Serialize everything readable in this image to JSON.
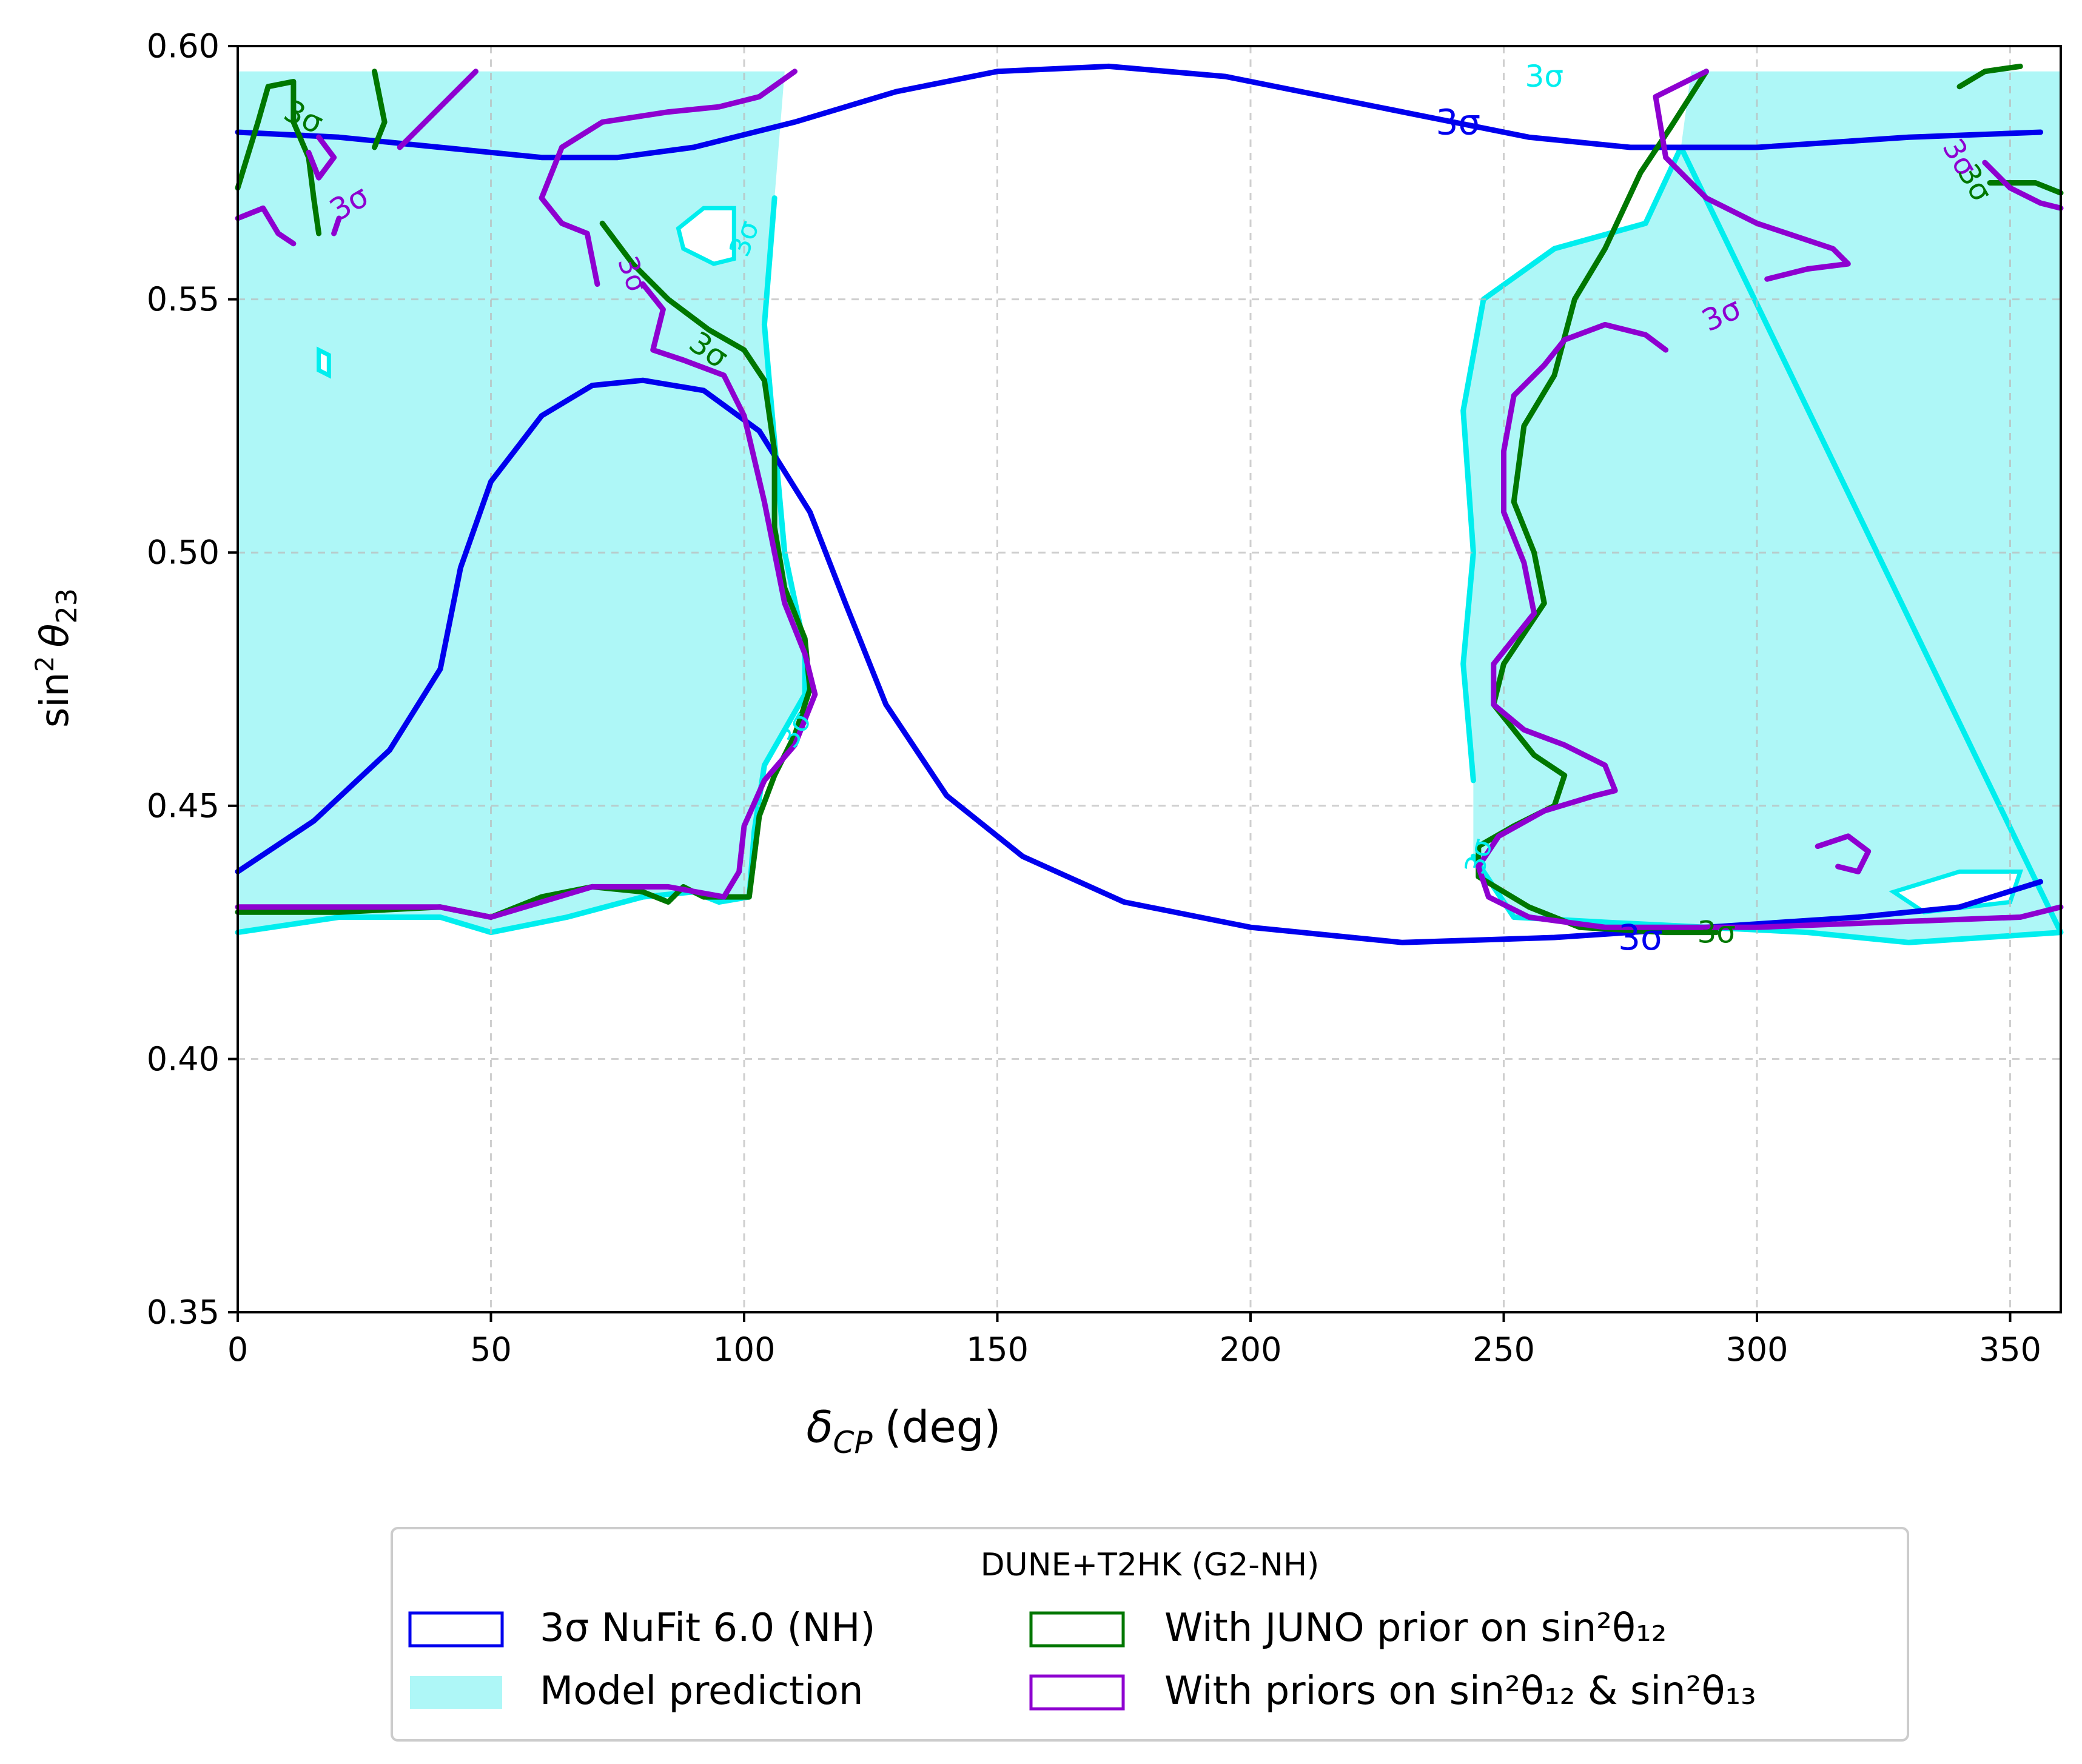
{
  "chart_data": {
    "type": "line",
    "title": "",
    "xlabel": "(deg)",
    "xlabel_symbol": "δ",
    "xlabel_sub": "CP",
    "ylabel_prefix": "sin",
    "ylabel_sup": "2",
    "ylabel_symbol": "θ",
    "ylabel_sub": "23",
    "xlim": [
      0,
      360
    ],
    "ylim": [
      0.35,
      0.6
    ],
    "xticks": [
      0,
      50,
      100,
      150,
      200,
      250,
      300,
      350
    ],
    "yticks": [
      0.35,
      0.4,
      0.45,
      0.5,
      0.55,
      0.6
    ],
    "xtick_labels": [
      "0",
      "50",
      "100",
      "150",
      "200",
      "250",
      "300",
      "350"
    ],
    "ytick_labels": [
      "0.35",
      "0.40",
      "0.45",
      "0.50",
      "0.55",
      "0.60"
    ],
    "grid": true,
    "legend_position": "below plot",
    "legend_title": "DUNE+T2HK (G2-NH)",
    "contour_label": "3σ",
    "series": [
      {
        "name": "3σ NuFit 6.0 (NH)",
        "color": "#0000ee",
        "style": "line",
        "segments": [
          [
            [
              0,
              0.583
            ],
            [
              20,
              0.582
            ],
            [
              40,
              0.58
            ],
            [
              60,
              0.578
            ],
            [
              75,
              0.578
            ],
            [
              90,
              0.58
            ],
            [
              110,
              0.585
            ],
            [
              130,
              0.591
            ],
            [
              150,
              0.595
            ],
            [
              172,
              0.596
            ],
            [
              195,
              0.594
            ],
            [
              215,
              0.59
            ],
            [
              235,
              0.586
            ],
            [
              255,
              0.582
            ],
            [
              275,
              0.58
            ],
            [
              300,
              0.58
            ],
            [
              330,
              0.582
            ],
            [
              356,
              0.583
            ]
          ],
          [
            [
              0,
              0.437
            ],
            [
              15,
              0.447
            ],
            [
              30,
              0.461
            ],
            [
              40,
              0.477
            ],
            [
              44,
              0.497
            ],
            [
              50,
              0.514
            ],
            [
              60,
              0.527
            ],
            [
              70,
              0.533
            ],
            [
              80,
              0.534
            ],
            [
              92,
              0.532
            ],
            [
              103,
              0.524
            ],
            [
              113,
              0.508
            ],
            [
              120,
              0.49
            ],
            [
              128,
              0.47
            ],
            [
              140,
              0.452
            ],
            [
              155,
              0.44
            ],
            [
              175,
              0.431
            ],
            [
              200,
              0.426
            ],
            [
              230,
              0.423
            ],
            [
              260,
              0.424
            ],
            [
              290,
              0.426
            ],
            [
              320,
              0.428
            ],
            [
              340,
              0.43
            ],
            [
              356,
              0.435
            ]
          ]
        ]
      },
      {
        "name": "Model prediction",
        "color": "#aef7f7",
        "edge_color": "#00eeee",
        "style": "filled",
        "regions": [
          [
            [
              0,
              0.595
            ],
            [
              108,
              0.595
            ],
            [
              106,
              0.57
            ],
            [
              104,
              0.545
            ],
            [
              106,
              0.522
            ],
            [
              108,
              0.5
            ],
            [
              112,
              0.481
            ],
            [
              112,
              0.472
            ],
            [
              104,
              0.458
            ],
            [
              102,
              0.445
            ],
            [
              101,
              0.432
            ],
            [
              95,
              0.431
            ],
            [
              90,
              0.433
            ],
            [
              80,
              0.432
            ],
            [
              65,
              0.428
            ],
            [
              50,
              0.425
            ],
            [
              40,
              0.428
            ],
            [
              20,
              0.428
            ],
            [
              0,
              0.425
            ]
          ],
          [
            [
              244,
              0.455
            ],
            [
              242,
              0.478
            ],
            [
              244,
              0.5
            ],
            [
              242,
              0.528
            ],
            [
              246,
              0.55
            ],
            [
              260,
              0.56
            ],
            [
              278,
              0.565
            ],
            [
              285,
              0.58
            ],
            [
              287,
              0.595
            ],
            [
              360,
              0.595
            ],
            [
              360,
              0.425
            ],
            [
              330,
              0.423
            ],
            [
              310,
              0.425
            ],
            [
              290,
              0.426
            ],
            [
              270,
              0.427
            ],
            [
              252,
              0.428
            ],
            [
              244,
              0.44
            ]
          ]
        ],
        "holes": [
          [
            [
              16,
              0.54
            ],
            [
              18,
              0.539
            ],
            [
              18,
              0.535
            ],
            [
              16,
              0.536
            ]
          ],
          [
            [
              87,
              0.564
            ],
            [
              92,
              0.568
            ],
            [
              98,
              0.568
            ],
            [
              98,
              0.558
            ],
            [
              94,
              0.557
            ],
            [
              88,
              0.56
            ]
          ],
          [
            [
              327,
              0.433
            ],
            [
              340,
              0.437
            ],
            [
              352,
              0.437
            ],
            [
              350,
              0.431
            ],
            [
              333,
              0.429
            ]
          ]
        ]
      },
      {
        "name": "With JUNO prior on sin²θ₁₂",
        "color": "#007700",
        "style": "line",
        "segments": [
          [
            [
              0,
              0.572
            ],
            [
              4,
              0.585
            ],
            [
              6,
              0.592
            ],
            [
              11,
              0.593
            ],
            [
              11,
              0.585
            ],
            [
              14,
              0.578
            ],
            [
              15,
              0.57
            ],
            [
              16,
              0.563
            ]
          ],
          [
            [
              27,
              0.58
            ],
            [
              29,
              0.585
            ],
            [
              27,
              0.595
            ]
          ],
          [
            [
              72,
              0.565
            ],
            [
              78,
              0.557
            ],
            [
              85,
              0.55
            ],
            [
              93,
              0.544
            ],
            [
              100,
              0.54
            ],
            [
              104,
              0.534
            ],
            [
              106,
              0.52
            ],
            [
              106,
              0.505
            ],
            [
              108,
              0.493
            ],
            [
              112,
              0.483
            ],
            [
              113,
              0.473
            ],
            [
              110,
              0.464
            ],
            [
              106,
              0.456
            ],
            [
              103,
              0.448
            ],
            [
              102,
              0.44
            ],
            [
              101,
              0.432
            ],
            [
              92,
              0.432
            ],
            [
              88,
              0.434
            ],
            [
              85,
              0.431
            ],
            [
              80,
              0.433
            ],
            [
              70,
              0.434
            ],
            [
              60,
              0.432
            ],
            [
              50,
              0.428
            ],
            [
              40,
              0.43
            ],
            [
              20,
              0.429
            ],
            [
              0,
              0.429
            ]
          ],
          [
            [
              290,
              0.595
            ],
            [
              283,
              0.584
            ],
            [
              277,
              0.575
            ],
            [
              270,
              0.56
            ],
            [
              264,
              0.55
            ],
            [
              260,
              0.535
            ],
            [
              254,
              0.525
            ],
            [
              252,
              0.51
            ],
            [
              256,
              0.5
            ],
            [
              258,
              0.49
            ],
            [
              250,
              0.478
            ],
            [
              248,
              0.47
            ],
            [
              256,
              0.46
            ],
            [
              262,
              0.456
            ],
            [
              260,
              0.45
            ],
            [
              252,
              0.446
            ],
            [
              245,
              0.442
            ],
            [
              245,
              0.436
            ],
            [
              255,
              0.43
            ],
            [
              265,
              0.426
            ],
            [
              282,
              0.425
            ],
            [
              292,
              0.425
            ]
          ],
          [
            [
              340,
              0.592
            ],
            [
              345,
              0.595
            ],
            [
              352,
              0.596
            ]
          ],
          [
            [
              346,
              0.573
            ],
            [
              355,
              0.573
            ],
            [
              360,
              0.571
            ]
          ]
        ]
      },
      {
        "name": "With priors on sin²θ₁₂ & sin²θ₁₃",
        "color": "#8e00d0",
        "style": "line",
        "segments": [
          [
            [
              0,
              0.566
            ],
            [
              5,
              0.568
            ],
            [
              8,
              0.563
            ],
            [
              11,
              0.561
            ]
          ],
          [
            [
              16,
              0.582
            ],
            [
              19,
              0.578
            ],
            [
              16,
              0.574
            ],
            [
              14,
              0.579
            ]
          ],
          [
            [
              19,
              0.563
            ],
            [
              20,
              0.566
            ]
          ],
          [
            [
              32,
              0.58
            ],
            [
              42,
              0.59
            ],
            [
              47,
              0.595
            ]
          ],
          [
            [
              71,
              0.553
            ],
            [
              69,
              0.563
            ],
            [
              64,
              0.565
            ],
            [
              60,
              0.57
            ],
            [
              64,
              0.58
            ],
            [
              72,
              0.585
            ],
            [
              85,
              0.587
            ],
            [
              95,
              0.588
            ],
            [
              103,
              0.59
            ],
            [
              110,
              0.595
            ]
          ],
          [
            [
              80,
              0.553
            ],
            [
              84,
              0.548
            ],
            [
              82,
              0.54
            ],
            [
              88,
              0.538
            ],
            [
              96,
              0.535
            ],
            [
              100,
              0.527
            ],
            [
              104,
              0.51
            ],
            [
              108,
              0.49
            ],
            [
              112,
              0.48
            ],
            [
              114,
              0.472
            ],
            [
              110,
              0.462
            ],
            [
              104,
              0.455
            ],
            [
              100,
              0.446
            ],
            [
              99,
              0.437
            ],
            [
              96,
              0.432
            ],
            [
              85,
              0.434
            ],
            [
              70,
              0.434
            ],
            [
              60,
              0.431
            ],
            [
              50,
              0.428
            ],
            [
              40,
              0.43
            ],
            [
              20,
              0.43
            ],
            [
              0,
              0.43
            ]
          ],
          [
            [
              290,
              0.595
            ],
            [
              280,
              0.59
            ],
            [
              282,
              0.578
            ],
            [
              290,
              0.57
            ],
            [
              300,
              0.565
            ],
            [
              315,
              0.56
            ],
            [
              318,
              0.557
            ],
            [
              310,
              0.556
            ],
            [
              302,
              0.554
            ]
          ],
          [
            [
              282,
              0.54
            ],
            [
              278,
              0.543
            ],
            [
              270,
              0.545
            ],
            [
              262,
              0.542
            ],
            [
              258,
              0.537
            ],
            [
              252,
              0.531
            ],
            [
              250,
              0.52
            ],
            [
              250,
              0.508
            ],
            [
              254,
              0.498
            ],
            [
              256,
              0.488
            ],
            [
              248,
              0.478
            ],
            [
              248,
              0.47
            ],
            [
              254,
              0.465
            ],
            [
              262,
              0.462
            ],
            [
              270,
              0.458
            ],
            [
              272,
              0.453
            ],
            [
              268,
              0.452
            ],
            [
              258,
              0.449
            ],
            [
              249,
              0.444
            ],
            [
              245,
              0.438
            ],
            [
              247,
              0.432
            ],
            [
              255,
              0.428
            ],
            [
              270,
              0.426
            ],
            [
              300,
              0.426
            ],
            [
              325,
              0.427
            ],
            [
              352,
              0.428
            ],
            [
              360,
              0.43
            ]
          ],
          [
            [
              312,
              0.442
            ],
            [
              318,
              0.444
            ],
            [
              322,
              0.441
            ],
            [
              320,
              0.437
            ],
            [
              316,
              0.438
            ]
          ],
          [
            [
              345,
              0.577
            ],
            [
              350,
              0.572
            ],
            [
              356,
              0.569
            ],
            [
              360,
              0.568
            ]
          ]
        ]
      }
    ]
  }
}
